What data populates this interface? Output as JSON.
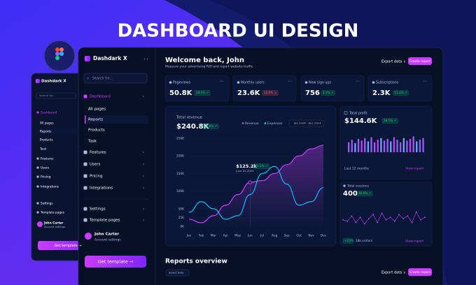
{
  "title": "DASHBOARD UI DESIGN",
  "sidebar": {
    "brand": "Dashdark X",
    "search": "Search for...",
    "items": [
      "Dashboard",
      "All pages",
      "Reports",
      "Products",
      "Task",
      "Features",
      "Users",
      "Pricing",
      "Integrations",
      "Settings",
      "Template pages"
    ],
    "user": {
      "name": "John Carter",
      "role": "Account settings"
    },
    "cta": "Get template →"
  },
  "header": {
    "title": "Welcome back, John",
    "subtitle": "Measure your advertising ROI and report website traffic.",
    "export": "Export data ↓",
    "create": "Create report"
  },
  "stats": [
    {
      "label": "Pageviews",
      "value": "50.8K",
      "change": "28.4% ↗"
    },
    {
      "label": "Monthly users",
      "value": "23.6K",
      "change": "12.6% ↘"
    },
    {
      "label": "New sign ups",
      "value": "756",
      "change": "3.1% ↗"
    },
    {
      "label": "Subscriptions",
      "value": "2.3K",
      "change": "11.3% ↗"
    }
  ],
  "revenue_chart": {
    "type": "line",
    "title": "Total revenue",
    "total": "$240.8K",
    "change": "24.6% ↗",
    "date_range": "Jan 2024 - Dec 2024",
    "categories": [
      "Jan",
      "Feb",
      "Mar",
      "Apr",
      "May",
      "Jun",
      "Jul",
      "Aug",
      "Sep",
      "Oct",
      "Nov",
      "Dec"
    ],
    "series": [
      {
        "name": "Revenue",
        "color": "#cb3cff",
        "values": [
          20,
          10,
          30,
          60,
          90,
          125,
          130,
          150,
          175,
          200,
          220,
          230
        ]
      },
      {
        "name": "Expenses",
        "color": "#00c2ff",
        "values": [
          40,
          70,
          50,
          20,
          30,
          90,
          150,
          170,
          120,
          60,
          70,
          110
        ]
      }
    ],
    "ylim": [
      0,
      250
    ],
    "yticks": [
      {
        "value": 0,
        "label": "0K"
      },
      {
        "value": 25,
        "label": "25K"
      },
      {
        "value": 50,
        "label": "50K"
      },
      {
        "value": 100,
        "label": "100K"
      },
      {
        "value": 150,
        "label": "150K"
      },
      {
        "value": 200,
        "label": "200K"
      },
      {
        "value": 250,
        "label": "250K"
      }
    ],
    "annotation": {
      "value": "$125.2k",
      "change": "12.5% ↗",
      "date": "June 21,2023",
      "index": 5
    }
  },
  "profit": {
    "label": "Total profit",
    "value": "$144.6K",
    "change": "28.5% ↗",
    "bars": [
      60,
      75,
      55,
      80,
      70,
      85,
      65,
      90,
      60,
      75,
      85,
      70,
      80,
      65,
      90,
      75,
      60,
      85,
      70,
      80,
      95,
      65,
      75,
      85
    ],
    "colors": [
      "#9b5cf6",
      "#9b5cf6",
      "#6aa8ff",
      "#9b5cf6",
      "#cb3cff",
      "#9b5cf6",
      "#6aa8ff",
      "#9b5cf6",
      "#9b5cf6",
      "#cb3cff",
      "#6aa8ff",
      "#9b5cf6",
      "#9b5cf6",
      "#6aa8ff",
      "#cb3cff",
      "#9b5cf6",
      "#9b5cf6",
      "#6aa8ff",
      "#9b5cf6",
      "#cb3cff",
      "#9b5cf6",
      "#6aa8ff",
      "#9b5cf6",
      "#9b5cf6"
    ],
    "period": "Last 12 months",
    "link": "View report"
  },
  "sessions": {
    "label": "Total sessions",
    "value": "400",
    "change": "16.8% ↗",
    "color": "#cb3cff",
    "values": [
      40,
      35,
      55,
      30,
      50,
      25,
      45,
      60,
      30,
      65,
      40,
      50,
      35,
      60,
      45,
      55,
      30,
      70,
      40,
      50
    ],
    "chip": "+20%",
    "visitors": "18k visitors",
    "link": "View report"
  },
  "reports": {
    "title": "Reports overview",
    "date": "Select date",
    "export": "Export data ↓",
    "create": "Create report"
  }
}
